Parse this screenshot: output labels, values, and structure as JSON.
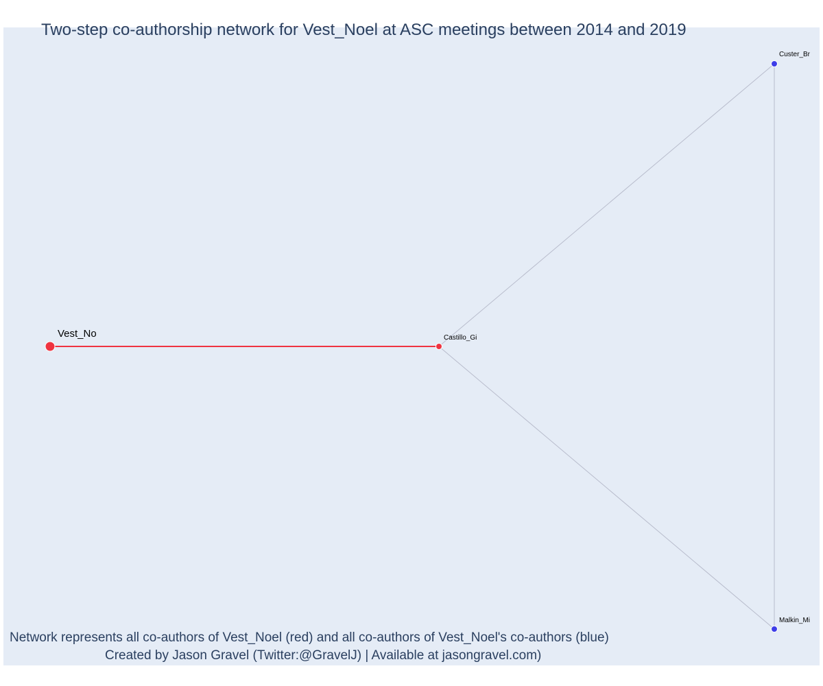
{
  "title": "Two-step co-authorship network for Vest_Noel at ASC meetings between 2014 and 2019",
  "caption": {
    "line1": "Network represents all co-authors of Vest_Noel (red) and all co-authors of Vest_Noel's co-authors (blue)",
    "line2": "Created by Jason Gravel (Twitter:@GravelJ) | Available at jasongravel.com)"
  },
  "colors": {
    "background": "#e5ecf6",
    "focal": "#ef3340",
    "coauthor": "#ef3340",
    "second_step": "#3d3de8",
    "focal_edge": "#ef3340",
    "other_edge": "#b8bccc",
    "text": "#2a3f5f"
  },
  "nodes": [
    {
      "id": "Vest_No",
      "label": "Vest_No",
      "role": "focal"
    },
    {
      "id": "Castillo_Gi",
      "label": "Castillo_Gi",
      "role": "coauthor"
    },
    {
      "id": "Custer_Br",
      "label": "Custer_Br",
      "role": "second_step"
    },
    {
      "id": "Malkin_Mi",
      "label": "Malkin_Mi",
      "role": "second_step"
    }
  ],
  "edges": [
    {
      "source": "Vest_No",
      "target": "Castillo_Gi",
      "type": "focal"
    },
    {
      "source": "Castillo_Gi",
      "target": "Custer_Br",
      "type": "other"
    },
    {
      "source": "Castillo_Gi",
      "target": "Malkin_Mi",
      "type": "other"
    },
    {
      "source": "Custer_Br",
      "target": "Malkin_Mi",
      "type": "other"
    }
  ]
}
